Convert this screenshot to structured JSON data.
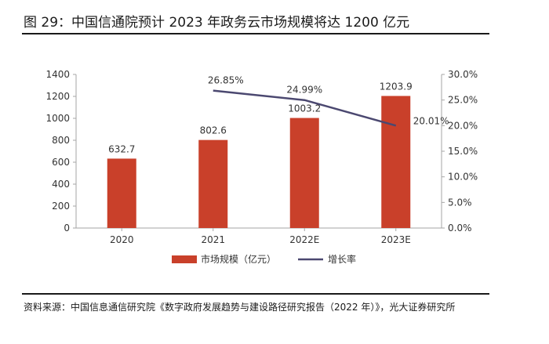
{
  "header": {
    "title": "图 29：中国信通院预计 2023 年政务云市场规模将达 1200 亿元"
  },
  "footer": {
    "source": "资料来源：中国信息通信研究院《数字政府发展趋势与建设路径研究报告（2022 年）》，光大证券研究所"
  },
  "chart_data": {
    "type": "bar",
    "title": "中国信通院预计 2023 年政务云市场规模将达 1200 亿元",
    "categories": [
      "2020",
      "2021",
      "2022E",
      "2023E"
    ],
    "series": [
      {
        "name": "市场规模（亿元）",
        "type": "bar",
        "axis": "left",
        "values": [
          632.7,
          802.6,
          1003.2,
          1203.9
        ],
        "labels": [
          "632.7",
          "802.6",
          "1003.2",
          "1203.9"
        ],
        "color": "#c9402a"
      },
      {
        "name": "增长率",
        "type": "line",
        "axis": "right",
        "values": [
          null,
          26.85,
          24.99,
          20.01
        ],
        "labels": [
          "",
          "26.85%",
          "24.99%",
          "20.01%"
        ],
        "color": "#4b4870"
      }
    ],
    "y_left": {
      "min": 0,
      "max": 1400,
      "ticks": [
        "0",
        "200",
        "400",
        "600",
        "800",
        "1000",
        "1200",
        "1400"
      ]
    },
    "y_right": {
      "min": 0,
      "max": 30,
      "ticks": [
        "0.0%",
        "5.0%",
        "10.0%",
        "15.0%",
        "20.0%",
        "25.0%",
        "30.0%"
      ]
    },
    "grid": false,
    "legend_position": "bottom"
  }
}
